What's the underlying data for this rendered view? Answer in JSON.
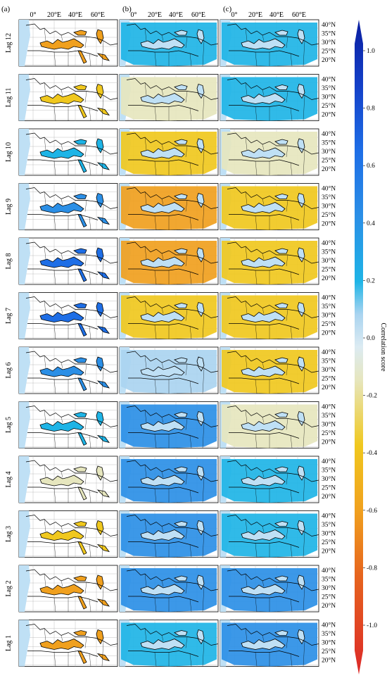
{
  "figure": {
    "panel_labels": [
      "(a)",
      "(b)",
      "(c)"
    ],
    "lon_ticks": [
      "0°",
      "20°E",
      "40°E",
      "60°E"
    ],
    "lat_ticks": [
      "40°N",
      "35°N",
      "30°N",
      "25°N",
      "20°N"
    ],
    "row_labels": [
      "Lag 12",
      "Lag 11",
      "Lag 10",
      "Lag 9",
      "Lag 8",
      "Lag 7",
      "Lag 6",
      "Lag 5",
      "Lag 4",
      "Lag 3",
      "Lag 2",
      "Lag 1"
    ]
  },
  "colorbar": {
    "label": "Correlation score",
    "ticks": [
      "1.0",
      "0.8",
      "0.6",
      "0.4",
      "0.2",
      "0.0",
      "-0.2",
      "-0.4",
      "-0.6",
      "-0.8",
      "-1.0"
    ],
    "colors": [
      "#0a1ea0",
      "#1440c8",
      "#1e6ee6",
      "#2b8fe6",
      "#1eb4e6",
      "#aad4f0",
      "#e6e6be",
      "#f0c81e",
      "#f0a01e",
      "#e6641e",
      "#dc2828"
    ],
    "ocean_color": "#bfe0f5",
    "land_color": "#ffffff"
  },
  "chart_data": {
    "type": "heatmap",
    "description_units": "correlation score per lag and panel (dominant shading, estimated)",
    "lags": [
      12,
      11,
      10,
      9,
      8,
      7,
      6,
      5,
      4,
      3,
      2,
      1
    ],
    "panels": [
      "(a)",
      "(b)",
      "(c)"
    ],
    "values": [
      [
        -0.55,
        0.2,
        0.25
      ],
      [
        -0.35,
        -0.15,
        0.2
      ],
      [
        0.2,
        -0.45,
        -0.2
      ],
      [
        0.35,
        -0.5,
        -0.4
      ],
      [
        0.55,
        -0.55,
        -0.45
      ],
      [
        0.55,
        -0.4,
        -0.3
      ],
      [
        0.45,
        -0.05,
        -0.35
      ],
      [
        0.3,
        0.35,
        -0.1
      ],
      [
        -0.1,
        0.5,
        0.25
      ],
      [
        -0.45,
        0.5,
        0.25
      ],
      [
        -0.55,
        0.45,
        0.4
      ],
      [
        -0.55,
        0.3,
        0.35
      ]
    ],
    "colorbar_range": [
      -1.0,
      1.0
    ]
  }
}
